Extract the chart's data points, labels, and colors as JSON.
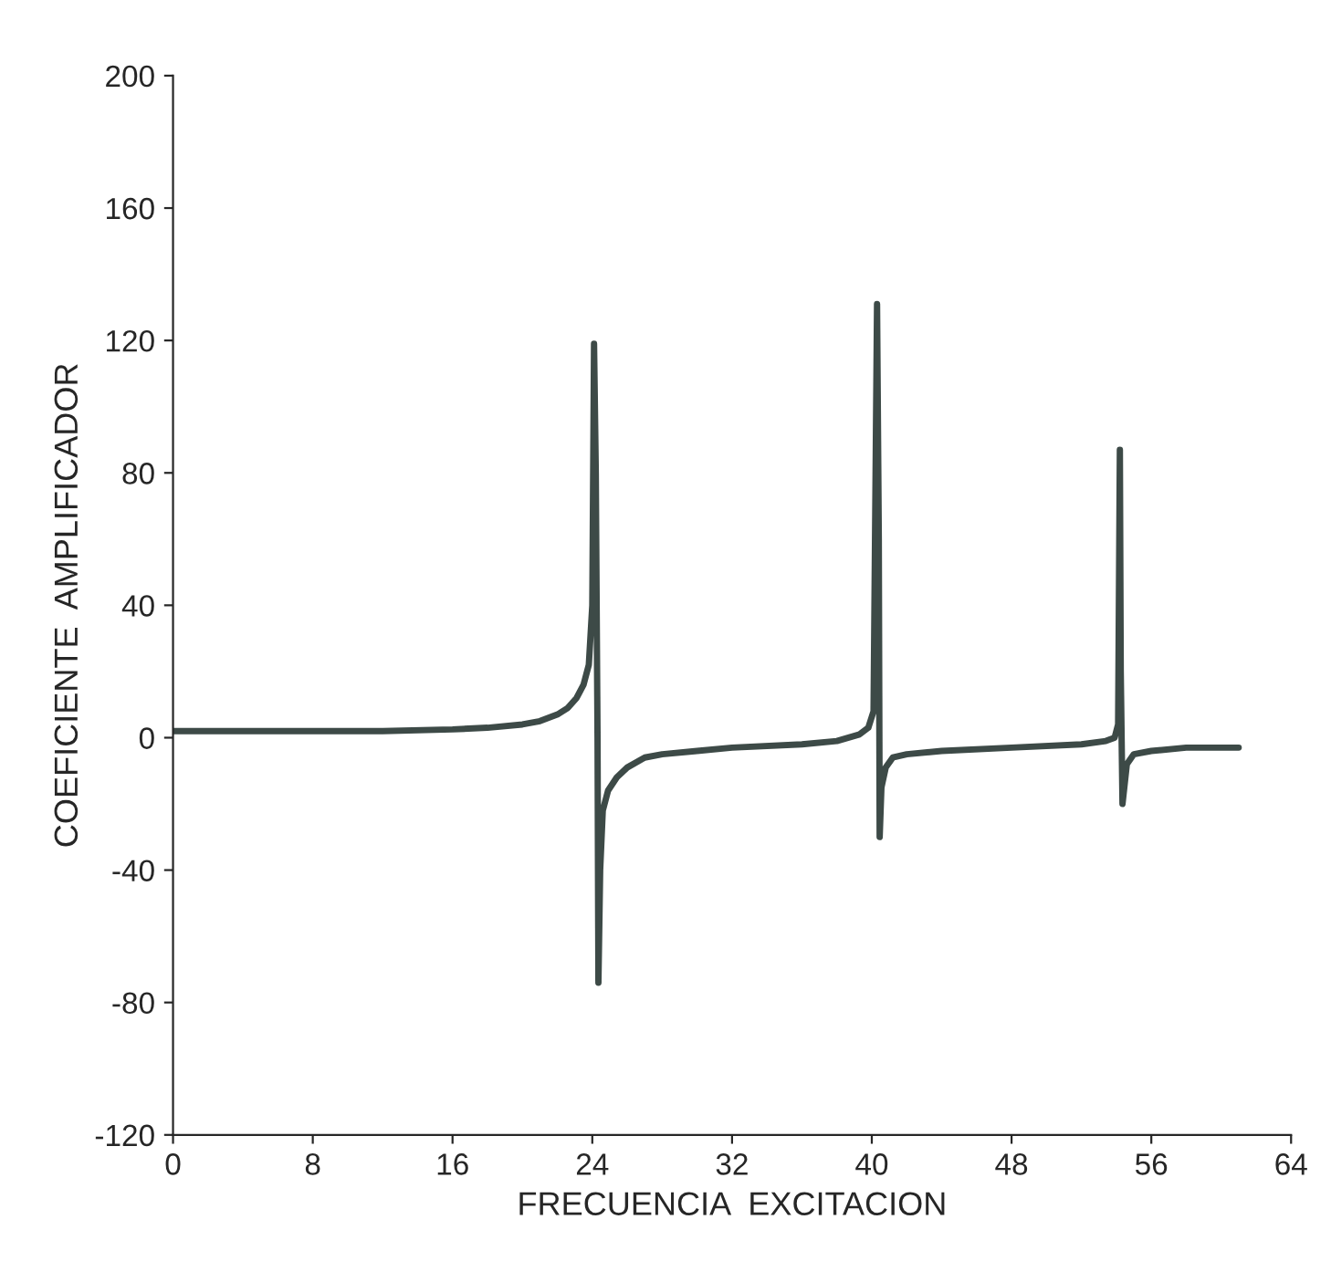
{
  "chart_data": {
    "type": "line",
    "xlabel": "FRECUENCIA  EXCITACION",
    "ylabel": "COEFICIENTE  AMPLIFICADOR",
    "xlim": [
      0,
      64
    ],
    "ylim": [
      -120,
      200
    ],
    "xticks": [
      0,
      8,
      16,
      24,
      32,
      40,
      48,
      56,
      64
    ],
    "yticks": [
      -120,
      -80,
      -40,
      0,
      40,
      80,
      120,
      160,
      200
    ],
    "grid": false,
    "legend": false,
    "marker": "none",
    "line_style": "solid",
    "series": [
      {
        "color": "#3d4a47",
        "x": [
          0,
          4,
          8,
          12,
          16,
          18,
          20,
          21,
          22,
          22.6,
          23.1,
          23.5,
          23.8,
          24.0,
          24.1,
          24.2,
          24.3,
          24.35,
          24.45,
          24.6,
          24.9,
          25.4,
          26,
          27,
          28,
          30,
          32,
          36,
          38,
          39.3,
          39.8,
          40.1,
          40.3,
          40.4,
          40.45,
          40.55,
          40.8,
          41.2,
          42,
          44,
          48,
          52,
          53.4,
          53.9,
          54.1,
          54.2,
          54.25,
          54.35,
          54.6,
          55,
          56,
          58,
          61
        ],
        "values": [
          2,
          2,
          2,
          2,
          2.5,
          3,
          4,
          5,
          7,
          9,
          12,
          16,
          22,
          40,
          119,
          80,
          0,
          -74,
          -40,
          -22,
          -16,
          -12,
          -9,
          -6,
          -5,
          -4,
          -3,
          -2,
          -1,
          1,
          3,
          8,
          131,
          60,
          -30,
          -15,
          -9,
          -6,
          -5,
          -4,
          -3,
          -2,
          -1,
          0,
          4,
          87,
          20,
          -20,
          -8,
          -5,
          -4,
          -3,
          -3
        ]
      }
    ]
  }
}
